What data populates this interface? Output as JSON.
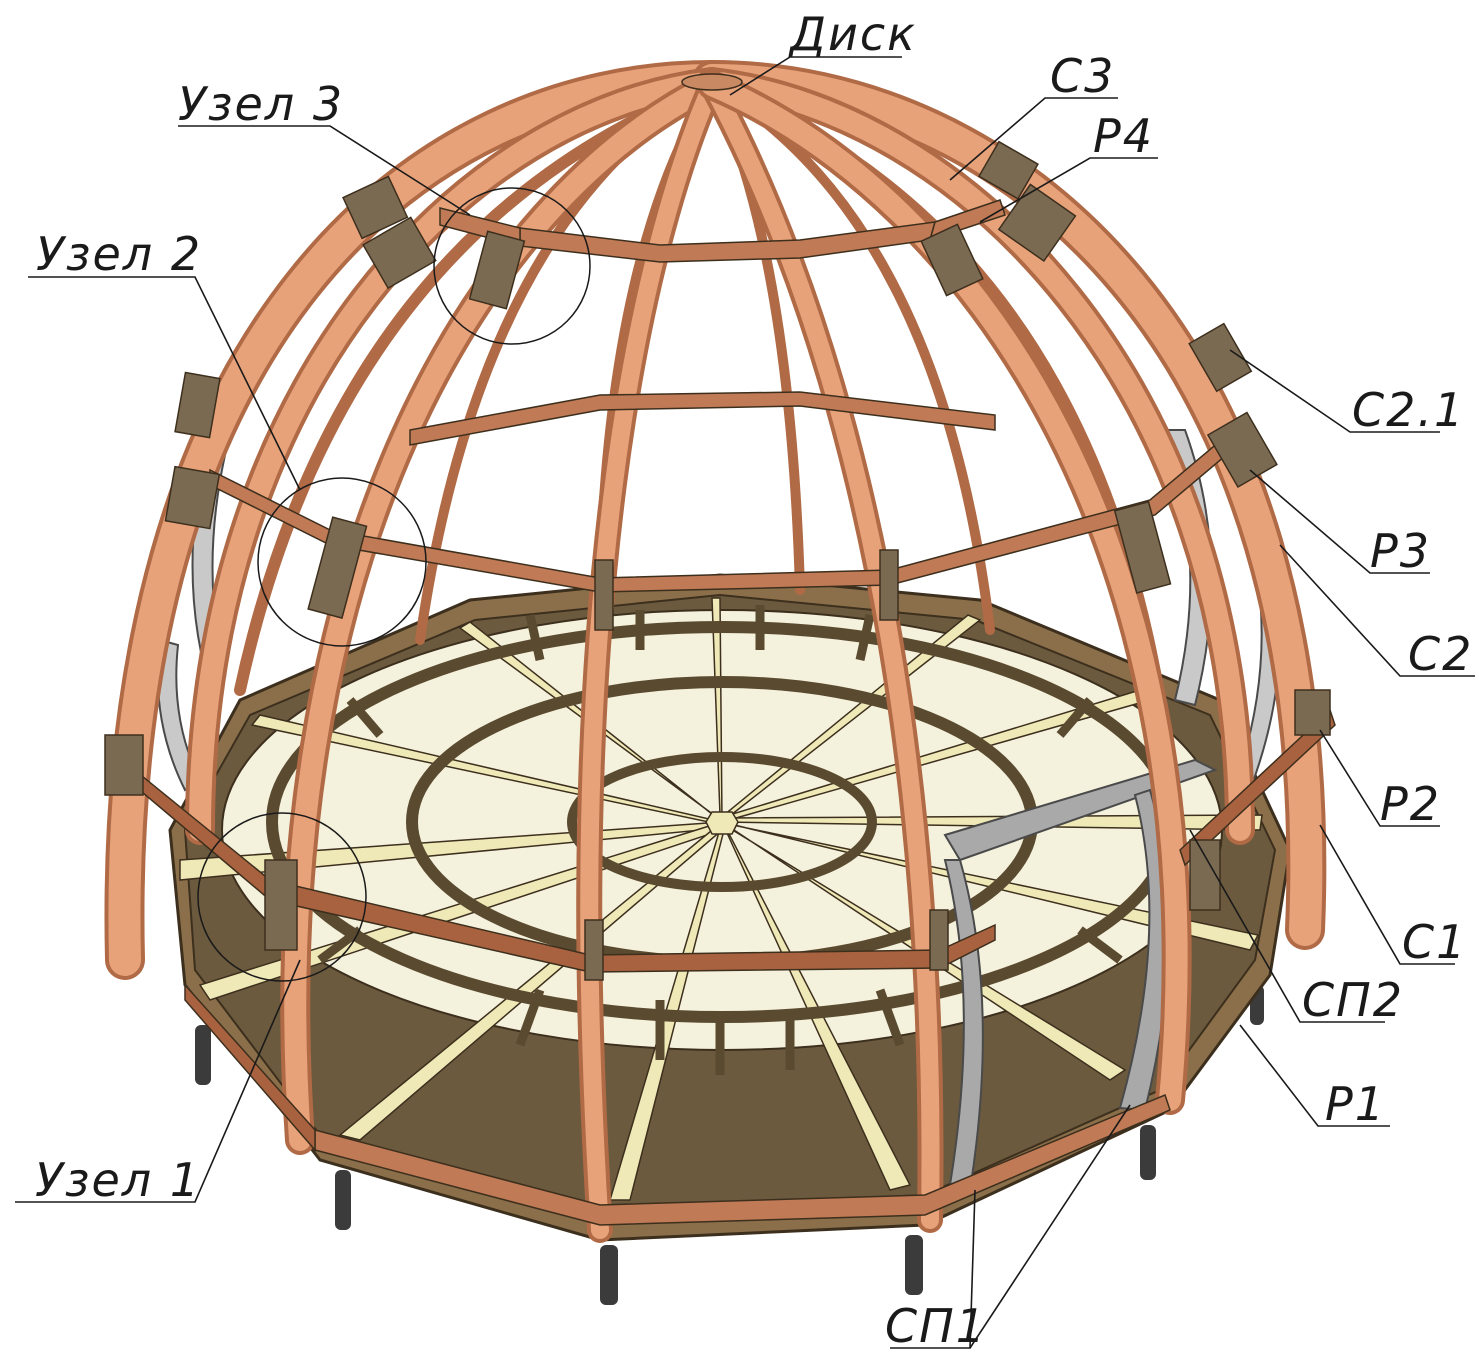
{
  "labels": {
    "disk": "Диск",
    "c3": "С3",
    "p4": "Р4",
    "node3": "Узел 3",
    "node2": "Узел 2",
    "c21": "С2.1",
    "p3": "Р3",
    "c2": "С2",
    "p2": "Р2",
    "c1": "С1",
    "sp2": "СП2",
    "p1": "Р1",
    "node1": "Узел 1",
    "sp1": "СП1"
  },
  "colors": {
    "rib_main": "#e8a27a",
    "rib_edge": "#b06a45",
    "rib_inner": "#c98a63",
    "ring_beam": "#c07a55",
    "joint_plate": "#7b6a52",
    "floor_joist": "#6b5a3e",
    "floor_radial": "#efe9b8",
    "floor_edge": "#5a4a30",
    "post": "#3b3b3b",
    "metal": "#a9a9a9",
    "line": "#1a1a1a"
  }
}
